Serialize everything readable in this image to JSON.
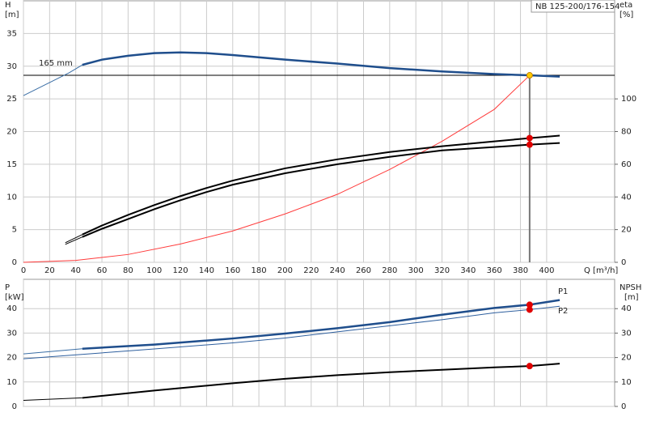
{
  "chart_data": [
    {
      "type": "line",
      "title": "NB 125-200/176-154",
      "y_label": "H",
      "y_unit": "[m]",
      "y2_label": "eta",
      "y2_unit": "[%]",
      "x_label": "Q [m³/h]",
      "annotation": "165 mm",
      "xlim": [
        0,
        452
      ],
      "xticks": [
        0,
        20,
        40,
        60,
        80,
        100,
        120,
        140,
        160,
        180,
        200,
        220,
        240,
        260,
        280,
        300,
        320,
        340,
        360,
        380,
        400
      ],
      "ylim": [
        0,
        40
      ],
      "yticks": [
        0,
        5,
        10,
        15,
        20,
        25,
        30,
        35
      ],
      "y2lim": [
        0,
        160
      ],
      "y2ticks": [
        0,
        20,
        40,
        60,
        80,
        100
      ],
      "grid": true,
      "xtick_labels": true,
      "series": [
        {
          "color": "#3a6ea5",
          "line_width": 1,
          "x": [
            0,
            20,
            35,
            45
          ],
          "values": [
            25.5,
            27.5,
            29,
            30.2
          ]
        },
        {
          "color": "#1f4e8c",
          "line_width": 2.5,
          "x": [
            45,
            60,
            80,
            100,
            120,
            140,
            160,
            200,
            240,
            280,
            320,
            360,
            387,
            410
          ],
          "values": [
            30.2,
            31,
            31.6,
            32,
            32.1,
            32,
            31.7,
            31,
            30.4,
            29.7,
            29.2,
            28.8,
            28.6,
            28.4
          ]
        },
        {
          "color": "#ff3b3b",
          "line_width": 1,
          "x": [
            0,
            40,
            80,
            120,
            160,
            200,
            240,
            280,
            320,
            360,
            387
          ],
          "values": [
            0,
            0.3,
            1.2,
            2.8,
            4.8,
            7.4,
            10.4,
            14.2,
            18.5,
            23.4,
            28.6
          ]
        },
        {
          "color": "#000000",
          "line_width": 1,
          "axis": "y2",
          "x": [
            32,
            45
          ],
          "values": [
            12,
            17
          ]
        },
        {
          "color": "#000000",
          "line_width": 2,
          "axis": "y2",
          "x": [
            45,
            60,
            80,
            100,
            120,
            140,
            160,
            200,
            240,
            280,
            320,
            360,
            387,
            410
          ],
          "values": [
            17,
            22.5,
            29,
            35,
            40.5,
            45.5,
            50,
            57.5,
            63,
            67.5,
            71,
            74,
            76,
            77.5
          ]
        },
        {
          "color": "#000000",
          "line_width": 1,
          "axis": "y2",
          "x": [
            32,
            45
          ],
          "values": [
            11,
            15.5
          ]
        },
        {
          "color": "#000000",
          "line_width": 2,
          "axis": "y2",
          "x": [
            45,
            60,
            80,
            100,
            120,
            140,
            160,
            200,
            240,
            280,
            320,
            360,
            387,
            410
          ],
          "values": [
            15.5,
            20.5,
            26.5,
            32.5,
            38,
            43,
            47.5,
            54.5,
            60,
            64.5,
            68.5,
            70.5,
            72,
            73
          ]
        }
      ],
      "markers": [
        {
          "x": 387,
          "y": 28.6,
          "color": "#ffcc00",
          "guides": true
        },
        {
          "x": 387,
          "y": 76,
          "color": "#e00000",
          "axis": "y2"
        },
        {
          "x": 387,
          "y": 72,
          "color": "#e00000",
          "axis": "y2"
        }
      ]
    },
    {
      "type": "line",
      "y_label": "P",
      "y_unit": "[kW]",
      "y2_label": "NPSH",
      "y2_unit": "[m]",
      "xlim": [
        0,
        452
      ],
      "xticks": [
        0,
        20,
        40,
        60,
        80,
        100,
        120,
        140,
        160,
        180,
        200,
        220,
        240,
        260,
        280,
        300,
        320,
        340,
        360,
        380,
        400
      ],
      "ylim": [
        0,
        52
      ],
      "yticks": [
        0,
        10,
        20,
        30,
        40
      ],
      "y2lim": [
        0,
        52
      ],
      "y2ticks": [
        0,
        10,
        20,
        30,
        40
      ],
      "grid": true,
      "xtick_labels": false,
      "series": [
        {
          "color": "#3a6ea5",
          "line_width": 1,
          "x": [
            0,
            45
          ],
          "values": [
            21.5,
            23.6
          ]
        },
        {
          "name": "P1",
          "color": "#1f4e8c",
          "line_width": 2.5,
          "x": [
            45,
            100,
            160,
            200,
            240,
            280,
            320,
            360,
            387,
            410
          ],
          "values": [
            23.6,
            25.3,
            27.8,
            29.8,
            32,
            34.5,
            37.5,
            40.3,
            41.6,
            43.5
          ]
        },
        {
          "name": "P2",
          "color": "#2e5f9e",
          "line_width": 1,
          "x": [
            0,
            100,
            160,
            200,
            240,
            280,
            320,
            360,
            387,
            410
          ],
          "values": [
            19.5,
            23.5,
            26,
            28,
            30.5,
            33,
            35.5,
            38.3,
            39.6,
            41
          ]
        },
        {
          "color": "#000000",
          "line_width": 1,
          "axis": "y2",
          "x": [
            0,
            45
          ],
          "values": [
            2.5,
            3.5
          ]
        },
        {
          "color": "#000000",
          "line_width": 2,
          "axis": "y2",
          "x": [
            45,
            100,
            160,
            200,
            240,
            280,
            320,
            360,
            387,
            410
          ],
          "values": [
            3.5,
            6.5,
            9.5,
            11.3,
            12.8,
            14,
            15,
            16,
            16.5,
            17.5
          ]
        }
      ],
      "markers": [
        {
          "x": 387,
          "y": 41.6,
          "color": "#e00000"
        },
        {
          "x": 387,
          "y": 39.6,
          "color": "#e00000"
        },
        {
          "x": 387,
          "y": 16.5,
          "color": "#e00000",
          "axis": "y2"
        }
      ]
    }
  ]
}
